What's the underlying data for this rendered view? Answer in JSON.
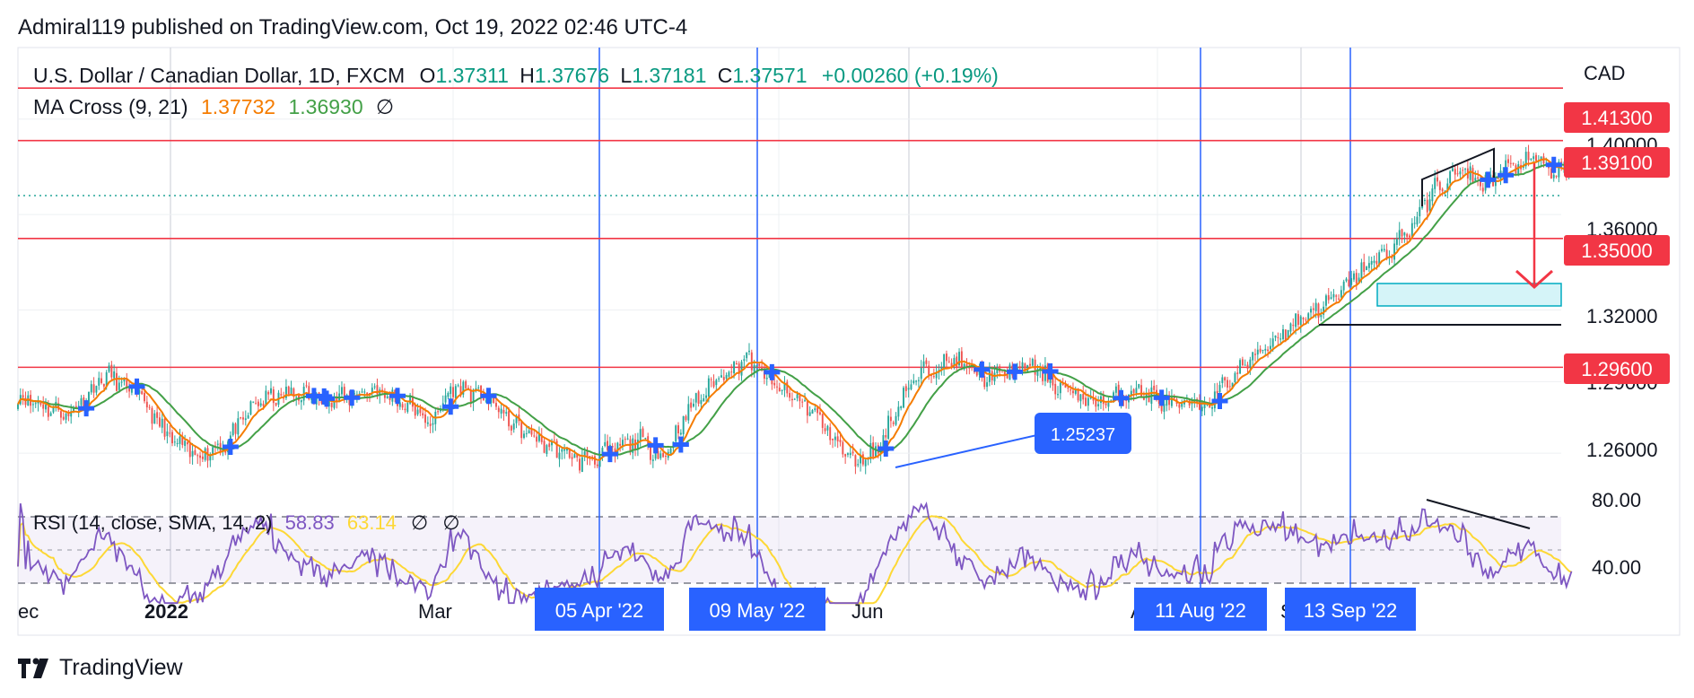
{
  "header": {
    "publisher_line": "Admiral119 published on TradingView.com, Oct 19, 2022 02:46 UTC-4"
  },
  "legend": {
    "symbol": "U.S. Dollar / Canadian Dollar, 1D, FXCM",
    "o_label": "O",
    "o_value": "1.37311",
    "h_label": "H",
    "h_value": "1.37676",
    "l_label": "L",
    "l_value": "1.37181",
    "c_label": "C",
    "c_value": "1.37571",
    "change": "+0.00260 (+0.19%)",
    "ma_label": "MA Cross (9, 21)",
    "ma_fast": "1.37732",
    "ma_slow": "1.36930",
    "hide_symbol": "∅"
  },
  "rsi_legend": {
    "label": "RSI (14, close, SMA, 14, 2)",
    "rsi_value": "58.83",
    "sma_value": "63.14",
    "hide1": "∅",
    "hide2": "∅"
  },
  "currency": "CAD",
  "price_axis_labels": [
    "1.40000",
    "1.36000",
    "1.32000",
    "1.29000",
    "1.26000"
  ],
  "rsi_axis_labels": [
    "80.00",
    "40.00"
  ],
  "horizontal_levels": [
    {
      "label": "1.41300",
      "value": 1.413
    },
    {
      "label": "1.39100",
      "value": 1.391
    },
    {
      "label": "1.35000",
      "value": 1.35
    },
    {
      "label": "1.29600",
      "value": 1.296
    }
  ],
  "annotation_label": "1.25237",
  "time_axis": [
    "ec",
    "2022",
    "Mar",
    "Jun",
    "A",
    "S"
  ],
  "time_highlights": [
    "05 Apr '22",
    "09 May '22",
    "11 Aug '22",
    "13 Sep '22"
  ],
  "footer": {
    "brand": "TradingView"
  },
  "colors": {
    "up": "#26a69a",
    "down": "#ef5350",
    "ma_fast": "#f57c00",
    "ma_slow": "#43a047",
    "level": "#f23645",
    "vline": "#2962ff",
    "rsi": "#7e57c2",
    "rsi_sma": "#fdd835"
  },
  "chart_data": {
    "type": "candlestick",
    "symbol": "USDCAD",
    "timeframe": "1D",
    "series": [
      {
        "name": "MA Cross (9, 21)",
        "last_values": [
          1.37732,
          1.3693
        ]
      },
      {
        "name": "RSI (14, close, SMA, 14, 2)",
        "last_values": [
          58.83,
          63.14
        ]
      }
    ],
    "price_range": [
      1.242,
      1.43
    ],
    "last_close": 1.37571,
    "key_levels": [
      1.413,
      1.391,
      1.35,
      1.296
    ],
    "swing_low": 1.25237,
    "path": [
      [
        0,
        1.284
      ],
      [
        20,
        1.276
      ],
      [
        35,
        1.293
      ],
      [
        48,
        1.284
      ],
      [
        60,
        1.266
      ],
      [
        70,
        1.259
      ],
      [
        82,
        1.264
      ],
      [
        95,
        1.282
      ],
      [
        110,
        1.285
      ],
      [
        125,
        1.282
      ],
      [
        140,
        1.287
      ],
      [
        155,
        1.28
      ],
      [
        163,
        1.272
      ],
      [
        172,
        1.288
      ],
      [
        185,
        1.283
      ],
      [
        198,
        1.27
      ],
      [
        210,
        1.263
      ],
      [
        222,
        1.257
      ],
      [
        233,
        1.26
      ],
      [
        245,
        1.266
      ],
      [
        255,
        1.258
      ],
      [
        265,
        1.278
      ],
      [
        278,
        1.293
      ],
      [
        288,
        1.3
      ],
      [
        300,
        1.287
      ],
      [
        312,
        1.28
      ],
      [
        322,
        1.267
      ],
      [
        330,
        1.256
      ],
      [
        340,
        1.262
      ],
      [
        350,
        1.285
      ],
      [
        360,
        1.296
      ],
      [
        370,
        1.299
      ],
      [
        380,
        1.292
      ],
      [
        390,
        1.293
      ],
      [
        400,
        1.297
      ],
      [
        410,
        1.289
      ],
      [
        420,
        1.283
      ],
      [
        430,
        1.281
      ],
      [
        440,
        1.287
      ],
      [
        452,
        1.282
      ],
      [
        460,
        1.279
      ],
      [
        470,
        1.281
      ],
      [
        480,
        1.292
      ],
      [
        490,
        1.302
      ],
      [
        500,
        1.311
      ],
      [
        510,
        1.319
      ],
      [
        520,
        1.324
      ],
      [
        530,
        1.336
      ],
      [
        540,
        1.343
      ],
      [
        550,
        1.354
      ],
      [
        560,
        1.371
      ],
      [
        570,
        1.378
      ],
      [
        580,
        1.373
      ],
      [
        590,
        1.38
      ],
      [
        600,
        1.383
      ],
      [
        608,
        1.377
      ],
      [
        614,
        1.379
      ]
    ]
  }
}
